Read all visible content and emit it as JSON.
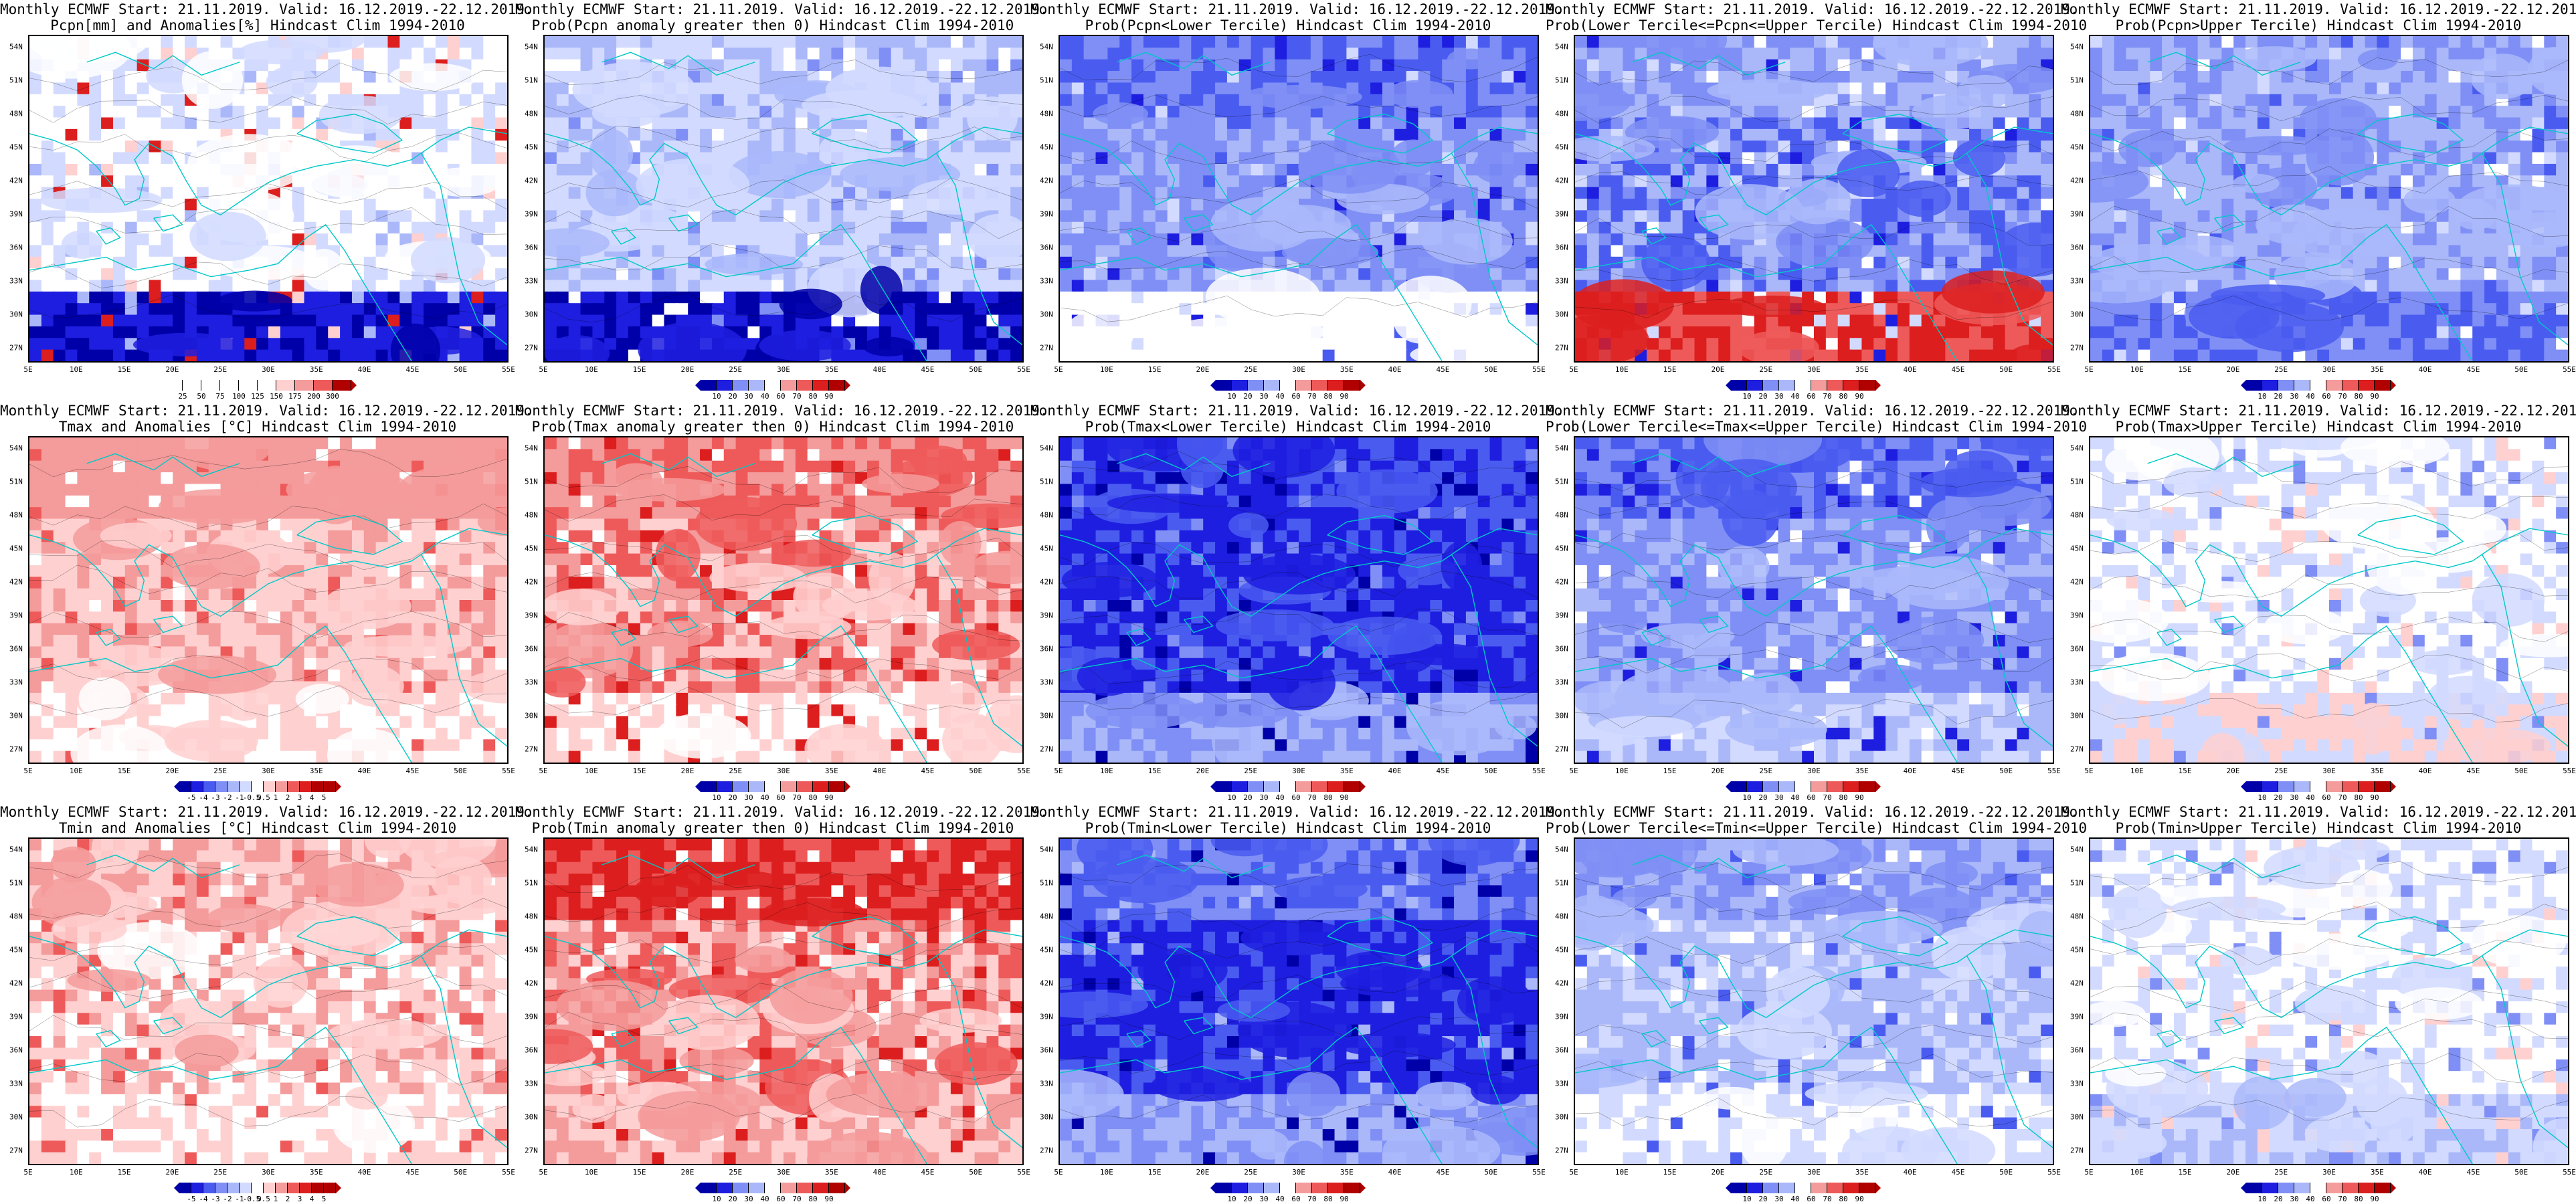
{
  "common": {
    "title_line1": "Monthly ECMWF Start: 21.11.2019. Valid: 16.12.2019.-22.12.2019.",
    "lat_labels": [
      "54N",
      "51N",
      "48N",
      "45N",
      "42N",
      "39N",
      "36N",
      "33N",
      "30N",
      "27N"
    ],
    "lon_labels": [
      "5E",
      "10E",
      "15E",
      "20E",
      "25E",
      "30E",
      "35E",
      "40E",
      "45E",
      "50E",
      "55E"
    ]
  },
  "colors": {
    "blue_scale": [
      "#0000a8",
      "#1e1ee0",
      "#4a5cf0",
      "#7f8ff5",
      "#aab8fa",
      "#d2daff",
      "#ffffff",
      "#ffd0d0",
      "#f49b9b",
      "#ee5a5a",
      "#dc1e1e",
      "#b00000"
    ],
    "coast": "#00c8c8",
    "contour": "#000000"
  },
  "scales": {
    "pcpn": [
      "25",
      "50",
      "75",
      "100",
      "125",
      "150",
      "175",
      "200",
      "300"
    ],
    "prob": [
      "10",
      "20",
      "30",
      "40",
      "60",
      "70",
      "80",
      "90"
    ],
    "temp": [
      "-5",
      "-4",
      "-3",
      "-2",
      "-1",
      "-0.5",
      "0.5",
      "1",
      "2",
      "3",
      "4",
      "5"
    ]
  },
  "panels": [
    {
      "title2": "Pcpn[mm] and Anomalies[%] Hindcast Clim 1994-2010",
      "scale": "pcpn",
      "style": "pcpn_anom"
    },
    {
      "title2": "Prob(Pcpn anomaly greater then 0) Hindcast Clim 1994-2010",
      "scale": "prob",
      "style": "pcpn_prob_gt0"
    },
    {
      "title2": "Prob(Pcpn<Lower Tercile) Hindcast Clim 1994-2010",
      "scale": "prob",
      "style": "pcpn_lower"
    },
    {
      "title2": "Prob(Lower Tercile<=Pcpn<=Upper Tercile) Hindcast Clim 1994-2010",
      "scale": "prob",
      "style": "pcpn_middle"
    },
    {
      "title2": "Prob(Pcpn>Upper Tercile) Hindcast Clim 1994-2010",
      "scale": "prob",
      "style": "pcpn_upper"
    },
    {
      "title2": "Tmax and Anomalies [°C] Hindcast Clim 1994-2010",
      "scale": "temp",
      "style": "tmax_anom"
    },
    {
      "title2": "Prob(Tmax anomaly greater then 0) Hindcast Clim 1994-2010",
      "scale": "prob",
      "style": "tmax_prob_gt0"
    },
    {
      "title2": "Prob(Tmax<Lower Tercile) Hindcast Clim 1994-2010",
      "scale": "prob",
      "style": "tmax_lower"
    },
    {
      "title2": "Prob(Lower Tercile<=Tmax<=Upper Tercile) Hindcast Clim 1994-2010",
      "scale": "prob",
      "style": "tmax_middle"
    },
    {
      "title2": "Prob(Tmax>Upper Tercile) Hindcast Clim 1994-2010",
      "scale": "prob",
      "style": "tmax_upper"
    },
    {
      "title2": "Tmin and Anomalies [°C] Hindcast Clim 1994-2010",
      "scale": "temp",
      "style": "tmin_anom"
    },
    {
      "title2": "Prob(Tmin anomaly greater then 0) Hindcast Clim 1994-2010",
      "scale": "prob",
      "style": "tmin_prob_gt0"
    },
    {
      "title2": "Prob(Tmin<Lower Tercile) Hindcast Clim 1994-2010",
      "scale": "prob",
      "style": "tmin_lower"
    },
    {
      "title2": "Prob(Lower Tercile<=Tmin<=Upper Tercile) Hindcast Clim 1994-2010",
      "scale": "prob",
      "style": "tmin_middle"
    },
    {
      "title2": "Prob(Tmin>Upper Tercile) Hindcast Clim 1994-2010",
      "scale": "prob",
      "style": "tmin_upper"
    }
  ]
}
